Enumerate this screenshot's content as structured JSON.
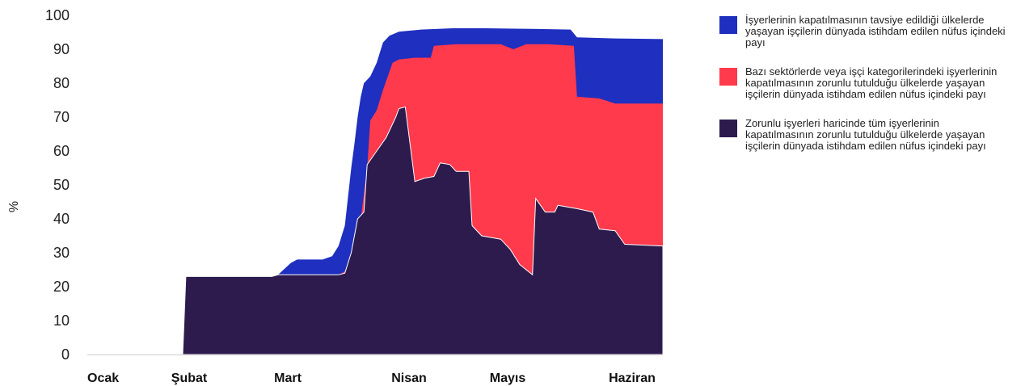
{
  "chart_data": {
    "type": "area",
    "stacking": "overlapping",
    "title": "",
    "xlabel": "",
    "ylabel": "%",
    "ylim": [
      0,
      100
    ],
    "yticks": [
      "0",
      "10",
      "20",
      "30",
      "40",
      "50",
      "60",
      "70",
      "80",
      "90",
      "100"
    ],
    "xlabels": [
      "Ocak",
      "Şubat",
      "Mart",
      "Nisan",
      "Mayıs",
      "Haziran"
    ],
    "xlim": [
      "2020-01-01",
      "2020-06-30"
    ],
    "grid": false,
    "legend_position": "right",
    "series": [
      {
        "name": "İşyerlerinin kapatılmasının tavsiye edildiği ülkelerde yaşayan işçilerin dünyada istihdam edilen nüfus içindeki payı",
        "color": "#1f2fbf",
        "points": [
          [
            "2020-01-01",
            0
          ],
          [
            "2020-01-31",
            0
          ],
          [
            "2020-02-01",
            23
          ],
          [
            "2020-02-28",
            23
          ],
          [
            "2020-03-01",
            23.5
          ],
          [
            "2020-03-05",
            27
          ],
          [
            "2020-03-07",
            28
          ],
          [
            "2020-03-15",
            28
          ],
          [
            "2020-03-18",
            29
          ],
          [
            "2020-03-20",
            32
          ],
          [
            "2020-03-22",
            38
          ],
          [
            "2020-03-24",
            55
          ],
          [
            "2020-03-25",
            62
          ],
          [
            "2020-03-26",
            70
          ],
          [
            "2020-03-27",
            76
          ],
          [
            "2020-03-28",
            80
          ],
          [
            "2020-03-30",
            82
          ],
          [
            "2020-04-01",
            86
          ],
          [
            "2020-04-03",
            92
          ],
          [
            "2020-04-05",
            94
          ],
          [
            "2020-04-08",
            95.2
          ],
          [
            "2020-04-15",
            95.8
          ],
          [
            "2020-04-25",
            96.2
          ],
          [
            "2020-05-05",
            96.2
          ],
          [
            "2020-05-20",
            96
          ],
          [
            "2020-06-01",
            95.8
          ],
          [
            "2020-06-03",
            93.5
          ],
          [
            "2020-06-15",
            93.2
          ],
          [
            "2020-06-30",
            93
          ]
        ]
      },
      {
        "name": "Bazı sektörlerde veya işçi kategorilerindeki işyerlerinin kapatılmasının zorunlu tutulduğu ülkelerde yaşayan işçilerin dünyada istihdam edilen nüfus içindeki payı",
        "color": "#ff3a4c",
        "points": [
          [
            "2020-01-01",
            0
          ],
          [
            "2020-01-31",
            0
          ],
          [
            "2020-02-01",
            23
          ],
          [
            "2020-02-28",
            23
          ],
          [
            "2020-03-01",
            23.5
          ],
          [
            "2020-03-20",
            23.5
          ],
          [
            "2020-03-23",
            25
          ],
          [
            "2020-03-25",
            30
          ],
          [
            "2020-03-27",
            40
          ],
          [
            "2020-03-29",
            55
          ],
          [
            "2020-03-30",
            69
          ],
          [
            "2020-04-01",
            72
          ],
          [
            "2020-04-03",
            78
          ],
          [
            "2020-04-06",
            86
          ],
          [
            "2020-04-08",
            87
          ],
          [
            "2020-04-13",
            87.5
          ],
          [
            "2020-04-18",
            87.5
          ],
          [
            "2020-04-19",
            91
          ],
          [
            "2020-04-26",
            91.5
          ],
          [
            "2020-05-10",
            91.5
          ],
          [
            "2020-05-14",
            90
          ],
          [
            "2020-05-18",
            91.5
          ],
          [
            "2020-05-25",
            91.5
          ],
          [
            "2020-06-02",
            91
          ],
          [
            "2020-06-03",
            76
          ],
          [
            "2020-06-10",
            75.5
          ],
          [
            "2020-06-15",
            74
          ],
          [
            "2020-06-30",
            74
          ]
        ]
      },
      {
        "name": "Zorunlu işyerleri haricinde tüm işyerlerinin kapatılmasının zorunlu tutulduğu ülkelerde yaşayan işçilerin dünyada istihdam edilen nüfus içindeki payı",
        "color": "#2d1b4e",
        "points": [
          [
            "2020-01-01",
            0
          ],
          [
            "2020-01-31",
            0
          ],
          [
            "2020-02-01",
            23
          ],
          [
            "2020-02-28",
            23
          ],
          [
            "2020-03-01",
            23.5
          ],
          [
            "2020-03-20",
            23.5
          ],
          [
            "2020-03-22",
            24
          ],
          [
            "2020-03-24",
            30
          ],
          [
            "2020-03-26",
            40
          ],
          [
            "2020-03-28",
            42
          ],
          [
            "2020-03-29",
            56
          ],
          [
            "2020-04-01",
            60
          ],
          [
            "2020-04-04",
            64
          ],
          [
            "2020-04-07",
            70
          ],
          [
            "2020-04-08",
            72.5
          ],
          [
            "2020-04-10",
            73
          ],
          [
            "2020-04-13",
            51
          ],
          [
            "2020-04-16",
            52
          ],
          [
            "2020-04-19",
            52.5
          ],
          [
            "2020-04-21",
            56.5
          ],
          [
            "2020-04-24",
            56
          ],
          [
            "2020-04-26",
            54
          ],
          [
            "2020-04-30",
            54
          ],
          [
            "2020-05-01",
            38
          ],
          [
            "2020-05-04",
            35
          ],
          [
            "2020-05-10",
            34
          ],
          [
            "2020-05-13",
            31
          ],
          [
            "2020-05-16",
            26.5
          ],
          [
            "2020-05-20",
            23.5
          ],
          [
            "2020-05-21",
            46
          ],
          [
            "2020-05-24",
            42
          ],
          [
            "2020-05-27",
            42
          ],
          [
            "2020-05-28",
            44
          ],
          [
            "2020-06-03",
            43
          ],
          [
            "2020-06-08",
            42
          ],
          [
            "2020-06-10",
            37
          ],
          [
            "2020-06-15",
            36.5
          ],
          [
            "2020-06-18",
            32.5
          ],
          [
            "2020-06-30",
            32
          ]
        ]
      }
    ]
  }
}
